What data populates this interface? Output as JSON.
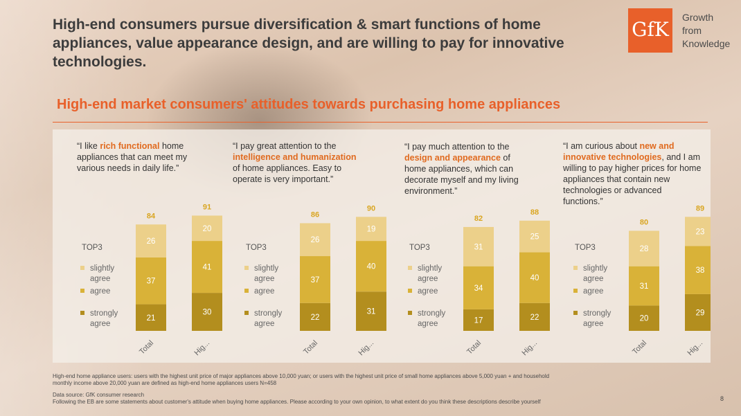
{
  "title": "High-end consumers pursue diversification & smart functions of home appliances, value appearance design, and are willing to pay for innovative technologies.",
  "logo": {
    "mark": "GfK",
    "line1": "Growth",
    "line2": "from",
    "line3": "Knowledge"
  },
  "subtitle": "High-end market consumers' attitudes towards purchasing home appliances",
  "quotes": [
    {
      "pre": "“I like ",
      "hl": "rich functional",
      "post": " home appliances that can meet my various needs in daily life.”"
    },
    {
      "pre": "“I pay great attention to the ",
      "hl": "intelligence and humanization",
      "post": " of  home appliances. Easy to operate is very important.”"
    },
    {
      "pre": "“I pay much attention to the ",
      "hl": "design and appearance",
      "post": " of home appliances, which can decorate myself and my living environment.”"
    },
    {
      "pre": "“I am curious about ",
      "hl": "new and innovative technologies",
      "post": ", and I am willing to pay higher prices for home appliances that contain new technologies or advanced functions.”"
    }
  ],
  "legend_title": "TOP3",
  "colors": {
    "slightly_agree": "#ecd08a",
    "agree": "#d9b238",
    "strongly_agree": "#b38e1e",
    "accent": "#e8602a",
    "total_label": "#d9a520"
  },
  "chart_data": [
    {
      "type": "bar",
      "stacked": true,
      "categories": [
        "Total",
        "Hig..."
      ],
      "totals": [
        84,
        91
      ],
      "series": [
        {
          "name": "strongly agree",
          "values": [
            21,
            30
          ]
        },
        {
          "name": "agree",
          "values": [
            37,
            41
          ]
        },
        {
          "name": "slightly agree",
          "values": [
            26,
            20
          ]
        }
      ]
    },
    {
      "type": "bar",
      "stacked": true,
      "categories": [
        "Total",
        "Hig..."
      ],
      "totals": [
        86,
        90
      ],
      "series": [
        {
          "name": "strongly agree",
          "values": [
            22,
            31
          ]
        },
        {
          "name": "agree",
          "values": [
            37,
            40
          ]
        },
        {
          "name": "slightly agree",
          "values": [
            26,
            19
          ]
        }
      ]
    },
    {
      "type": "bar",
      "stacked": true,
      "categories": [
        "Total",
        "Hig..."
      ],
      "totals": [
        82,
        88
      ],
      "series": [
        {
          "name": "strongly agree",
          "values": [
            17,
            22
          ]
        },
        {
          "name": "agree",
          "values": [
            34,
            40
          ]
        },
        {
          "name": "slightly agree",
          "values": [
            31,
            25
          ]
        }
      ]
    },
    {
      "type": "bar",
      "stacked": true,
      "categories": [
        "Total",
        "Hig..."
      ],
      "totals": [
        80,
        89
      ],
      "series": [
        {
          "name": "strongly agree",
          "values": [
            20,
            29
          ]
        },
        {
          "name": "agree",
          "values": [
            31,
            38
          ]
        },
        {
          "name": "slightly agree",
          "values": [
            28,
            23
          ]
        }
      ]
    }
  ],
  "footnotes": {
    "definition": "High-end home appliance users: users with the highest unit price of major appliances above 10,000 yuan; or users with the highest unit price of small home appliances above 5,000 yuan + and household monthly income above 20,000 yuan are defined as high-end home appliances users N=458",
    "source": "Data source: GfK consumer research",
    "question": "Following the EB are some statements about customer's attitude when buying home appliances. Please according to your own opinion, to what extent do you think these descriptions describe yourself"
  },
  "page_number": "8"
}
